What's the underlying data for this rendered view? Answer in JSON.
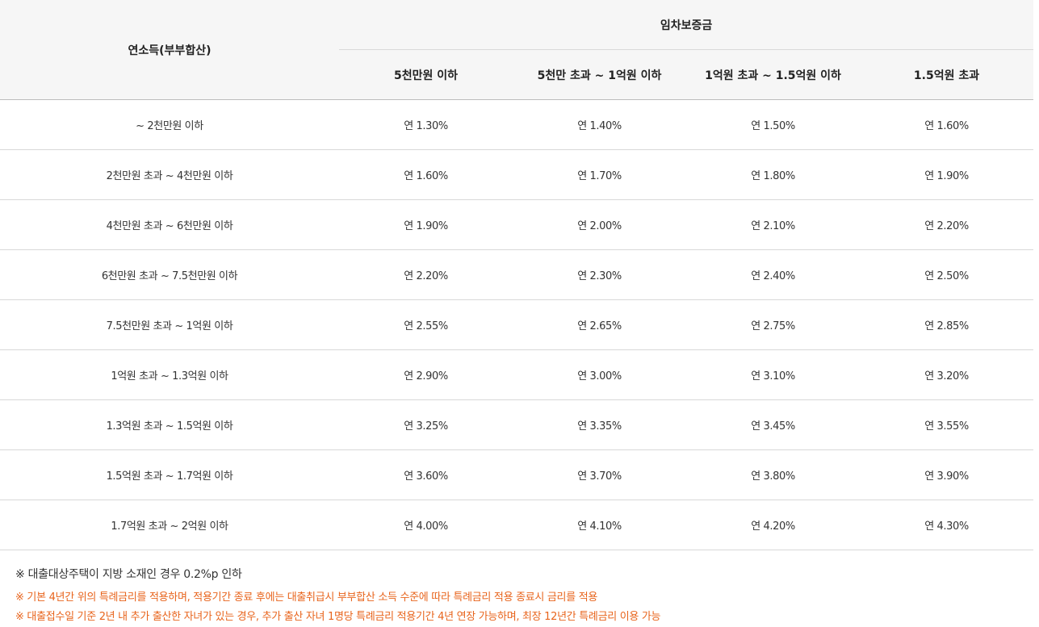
{
  "table": {
    "row_header": "연소득(부부합산)",
    "group_header": "임차보증금",
    "columns": [
      "5천만원 이하",
      "5천만 초과 ~ 1억원 이하",
      "1억원 초과 ~ 1.5억원 이하",
      "1.5억원 초과"
    ],
    "rows": [
      {
        "income": "~ 2천만원 이하",
        "rates": [
          "연 1.30%",
          "연 1.40%",
          "연 1.50%",
          "연 1.60%"
        ]
      },
      {
        "income": "2천만원 초과 ~ 4천만원 이하",
        "rates": [
          "연 1.60%",
          "연 1.70%",
          "연 1.80%",
          "연 1.90%"
        ]
      },
      {
        "income": "4천만원 초과 ~ 6천만원 이하",
        "rates": [
          "연 1.90%",
          "연 2.00%",
          "연 2.10%",
          "연 2.20%"
        ]
      },
      {
        "income": "6천만원 초과 ~ 7.5천만원 이하",
        "rates": [
          "연 2.20%",
          "연 2.30%",
          "연 2.40%",
          "연 2.50%"
        ]
      },
      {
        "income": "7.5천만원 초과 ~ 1억원 이하",
        "rates": [
          "연 2.55%",
          "연 2.65%",
          "연 2.75%",
          "연 2.85%"
        ]
      },
      {
        "income": "1억원 초과 ~ 1.3억원 이하",
        "rates": [
          "연 2.90%",
          "연 3.00%",
          "연 3.10%",
          "연 3.20%"
        ]
      },
      {
        "income": "1.3억원 초과 ~ 1.5억원 이하",
        "rates": [
          "연 3.25%",
          "연 3.35%",
          "연 3.45%",
          "연 3.55%"
        ]
      },
      {
        "income": "1.5억원 초과 ~ 1.7억원 이하",
        "rates": [
          "연 3.60%",
          "연 3.70%",
          "연 3.80%",
          "연 3.90%"
        ]
      },
      {
        "income": "1.7억원 초과 ~ 2억원 이하",
        "rates": [
          "연 4.00%",
          "연 4.10%",
          "연 4.20%",
          "연 4.30%"
        ]
      }
    ]
  },
  "notes": [
    {
      "text": "※ 대출대상주택이 지방 소재인 경우 0.2%p 인하",
      "color": "#333333"
    },
    {
      "text": "※ 기본 4년간 위의 특례금리를 적용하며, 적용기간 종료 후에는 대출취급시 부부합산 소득 수준에 따라 특례금리 적용 종료시 금리를 적용",
      "color": "#e8641c"
    },
    {
      "text": "※ 대출접수일 기준 2년 내 추가 출산한 자녀가 있는 경우, 추가 출산 자녀 1명당 특례금리 적용기간 4년 연장 가능하며, 최장 12년간 특례금리 이용 가능",
      "color": "#e8641c"
    }
  ]
}
